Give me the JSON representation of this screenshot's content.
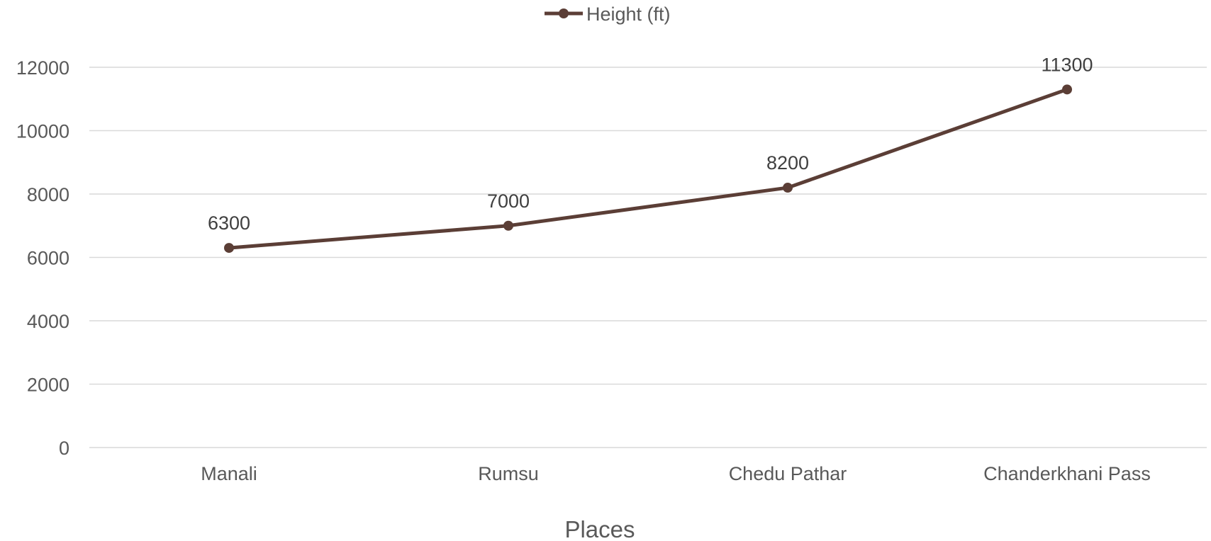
{
  "chart_data": {
    "type": "line",
    "title": "",
    "xlabel": "Places",
    "ylabel": "",
    "categories": [
      "Manali",
      "Rumsu",
      "Chedu Pathar",
      "Chanderkhani Pass"
    ],
    "series": [
      {
        "name": "Height (ft)",
        "values": [
          6300,
          7000,
          8200,
          11300
        ],
        "color": "#5b3e36"
      }
    ],
    "ylim": [
      0,
      12000
    ],
    "yticks": [
      0,
      2000,
      4000,
      6000,
      8000,
      10000,
      12000
    ],
    "grid": true,
    "legend_position": "top-center",
    "data_labels": true
  }
}
